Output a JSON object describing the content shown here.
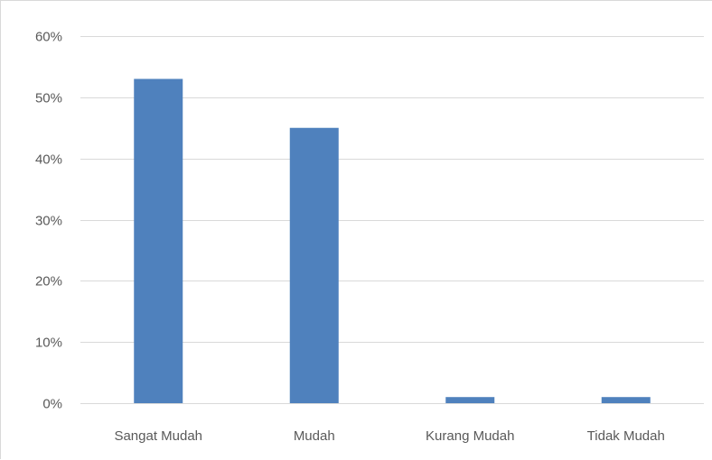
{
  "chart_data": {
    "type": "bar",
    "categories": [
      "Sangat Mudah",
      "Mudah",
      "Kurang Mudah",
      "Tidak Mudah"
    ],
    "values": [
      0.53,
      0.45,
      0.01,
      0.01
    ],
    "ylim": [
      0,
      0.6
    ],
    "yticks": [
      0,
      0.1,
      0.2,
      0.3,
      0.4,
      0.5,
      0.6
    ],
    "ytick_labels": [
      "0%",
      "10%",
      "20%",
      "30%",
      "40%",
      "50%",
      "60%"
    ],
    "title": "",
    "xlabel": "",
    "ylabel": "",
    "grid": true,
    "legend": "none",
    "bar_color": "#4f81bd",
    "grid_color": "#d9d9d9",
    "axis_line_color": "#d9d9d9",
    "label_color": "#595959"
  }
}
